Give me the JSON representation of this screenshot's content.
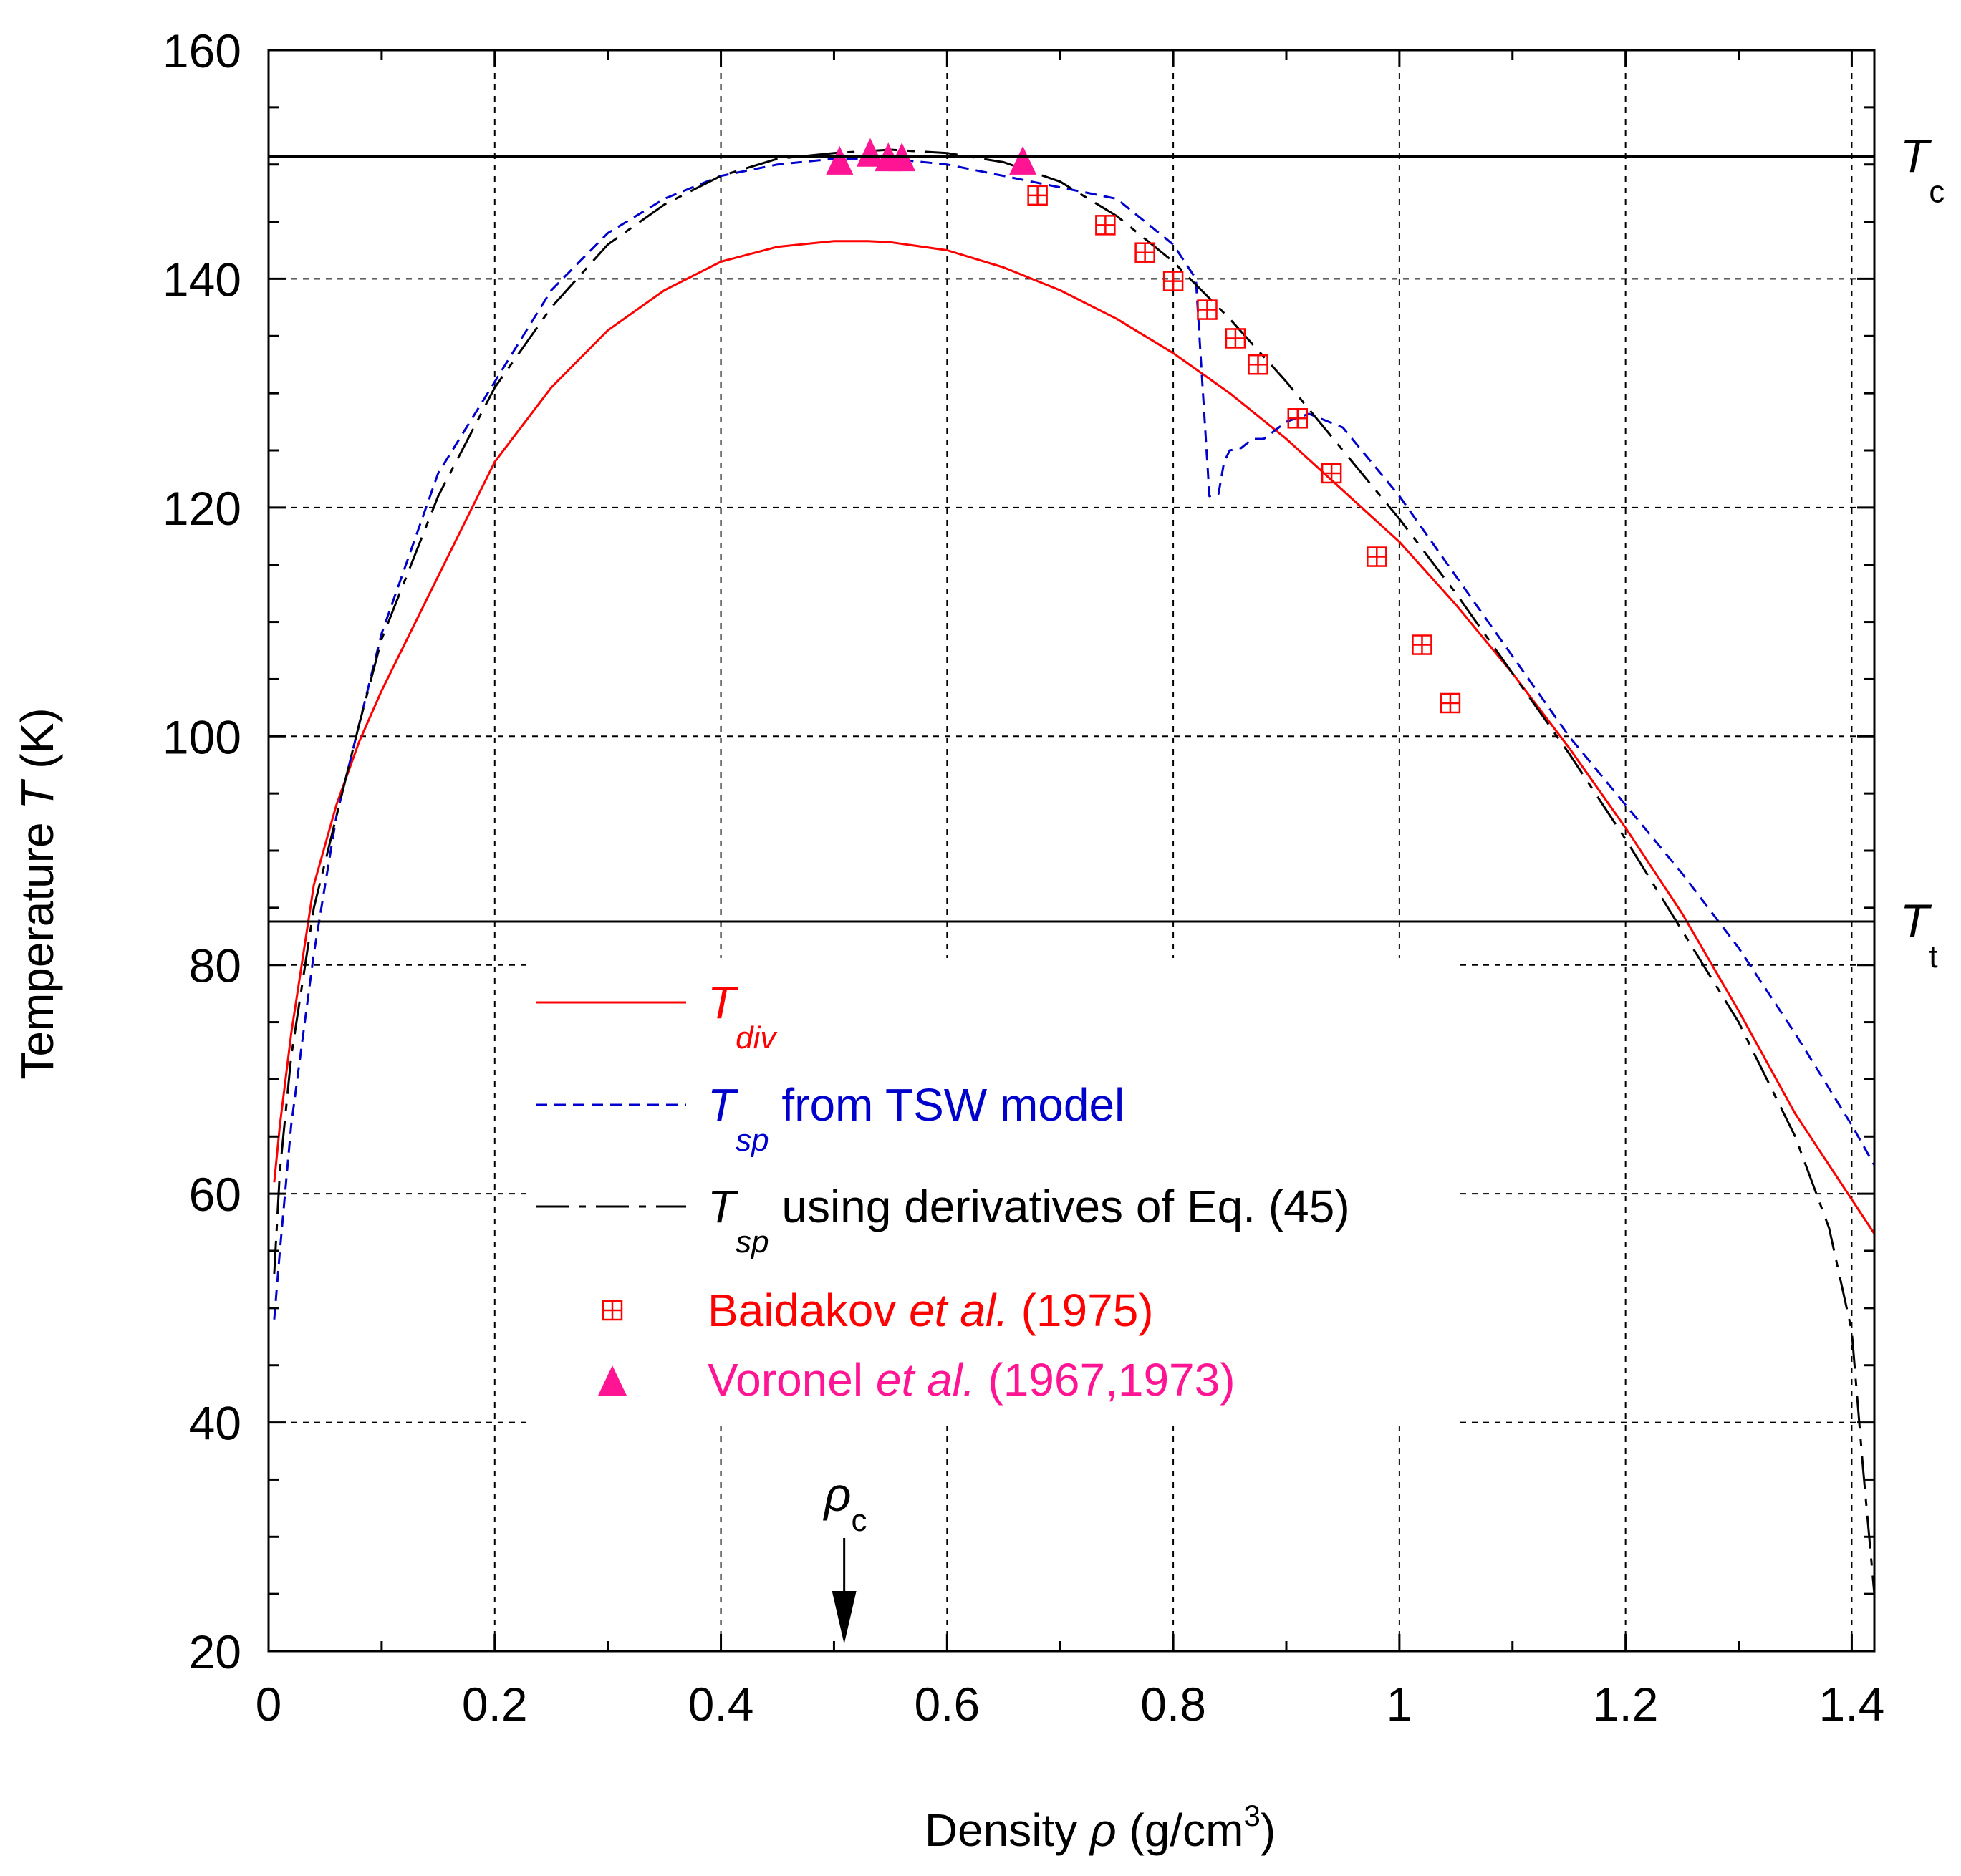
{
  "chart_data": {
    "type": "line",
    "xlabel_pre": "Density ",
    "xlabel_sym": "ρ",
    "xlabel_post": " (g/cm",
    "xlabel_sup": "3",
    "xlabel_end": ")",
    "ylabel_pre": "Temperature ",
    "ylabel_sym": "T",
    "ylabel_post": " (K)",
    "xlim": [
      0,
      1.42
    ],
    "ylim": [
      20,
      160
    ],
    "xticks": [
      "0",
      "0.2",
      "0.4",
      "0.6",
      "0.8",
      "1",
      "1.2",
      "1.4"
    ],
    "xtick_values": [
      0,
      0.2,
      0.4,
      0.6,
      0.8,
      1.0,
      1.2,
      1.4
    ],
    "yticks": [
      "20",
      "40",
      "60",
      "80",
      "100",
      "120",
      "140",
      "160"
    ],
    "ytick_values": [
      20,
      40,
      60,
      80,
      100,
      120,
      140,
      160
    ],
    "hlines": [
      {
        "value": 150.7,
        "sym": "T",
        "sub": "c"
      },
      {
        "value": 83.8,
        "sym": "T",
        "sub": "t"
      }
    ],
    "rho_c": {
      "value": 0.509,
      "sym": "ρ",
      "sub": "c"
    },
    "series": [
      {
        "name": "T_div",
        "color": "#ff0000",
        "style": "solid",
        "x": [
          0.005,
          0.01,
          0.02,
          0.04,
          0.06,
          0.08,
          0.1,
          0.15,
          0.2,
          0.25,
          0.3,
          0.35,
          0.4,
          0.45,
          0.5,
          0.53,
          0.55,
          0.6,
          0.65,
          0.7,
          0.75,
          0.8,
          0.85,
          0.9,
          0.95,
          1.0,
          1.05,
          1.1,
          1.15,
          1.2,
          1.25,
          1.3,
          1.35,
          1.4,
          1.42
        ],
        "y": [
          61,
          66,
          74,
          87,
          94,
          99.5,
          104,
          114,
          124,
          130.5,
          135.5,
          139,
          141.5,
          142.8,
          143.3,
          143.3,
          143.2,
          142.5,
          141,
          139,
          136.5,
          133.5,
          130,
          126,
          121.5,
          117,
          111.5,
          105.5,
          99,
          92,
          84.5,
          76,
          67,
          59.5,
          56.5
        ]
      },
      {
        "name": "T_sp TSW",
        "color": "#0000cc",
        "style": "dashed",
        "x": [
          0.005,
          0.01,
          0.02,
          0.04,
          0.06,
          0.08,
          0.1,
          0.15,
          0.2,
          0.25,
          0.3,
          0.35,
          0.4,
          0.45,
          0.5,
          0.55,
          0.6,
          0.65,
          0.7,
          0.75,
          0.8,
          0.82,
          0.825,
          0.832,
          0.84,
          0.845,
          0.85,
          0.86,
          0.87,
          0.88,
          0.9,
          0.92,
          0.95,
          1.0,
          1.05,
          1.1,
          1.15,
          1.2,
          1.25,
          1.3,
          1.35,
          1.4,
          1.42
        ],
        "y": [
          49,
          55,
          66,
          81,
          93,
          101,
          109,
          123,
          131,
          139,
          144,
          147,
          149,
          150,
          150.5,
          150.5,
          150,
          149,
          148,
          147,
          143,
          140,
          132,
          121,
          121.2,
          124,
          125,
          125.2,
          126,
          126,
          127.5,
          128.2,
          127,
          121,
          114,
          107,
          100,
          94,
          88,
          81.5,
          74,
          66,
          62.5
        ]
      },
      {
        "name": "T_sp Eq45",
        "color": "#000000",
        "style": "longdash",
        "x": [
          0.005,
          0.01,
          0.02,
          0.04,
          0.06,
          0.08,
          0.1,
          0.15,
          0.2,
          0.25,
          0.3,
          0.35,
          0.4,
          0.45,
          0.5,
          0.55,
          0.6,
          0.65,
          0.7,
          0.75,
          0.8,
          0.85,
          0.9,
          0.95,
          1.0,
          1.05,
          1.1,
          1.15,
          1.2,
          1.25,
          1.3,
          1.35,
          1.38,
          1.4,
          1.41,
          1.42
        ],
        "y": [
          53,
          62,
          72,
          85,
          93,
          101,
          108.5,
          121,
          130.5,
          137.5,
          143,
          146.5,
          149,
          150.5,
          151,
          151.3,
          151,
          150.2,
          148.5,
          145.5,
          141.5,
          136.5,
          131,
          125,
          119,
          112.5,
          105.5,
          98.5,
          91,
          83,
          75,
          65,
          57,
          48,
          36,
          25
        ]
      }
    ],
    "scatter": [
      {
        "name": "Baidakov",
        "color": "#ff0000",
        "marker": "boxplus",
        "x": [
          0.68,
          0.74,
          0.775,
          0.8,
          0.83,
          0.855,
          0.875,
          0.91,
          0.94,
          0.98,
          1.02,
          1.045
        ],
        "y": [
          147.3,
          144.7,
          142.3,
          139.8,
          137.3,
          134.8,
          132.5,
          127.8,
          123,
          115.7,
          108,
          102.9
        ]
      },
      {
        "name": "Voronel",
        "color": "#ff1493",
        "marker": "triangle",
        "x": [
          0.505,
          0.532,
          0.548,
          0.56,
          0.667
        ],
        "y": [
          150.3,
          151,
          150.6,
          150.6,
          150.3
        ]
      }
    ],
    "legend": [
      {
        "sym": "T",
        "sub": "div",
        "text": "",
        "color": "#ff0000",
        "text_color": "#ff0000"
      },
      {
        "sym": "T",
        "sub": "sp",
        "text": " from TSW model",
        "color": "#0000cc",
        "text_color": "#0000cc"
      },
      {
        "sym": "T",
        "sub": "sp",
        "text": " using derivatives of Eq. (45)",
        "color": "#000000",
        "text_color": "#000000"
      },
      {
        "pre": "Baidakov ",
        "ital": "et al.",
        "post": " (1975)",
        "color": "#ff0000",
        "text_color": "#ff0000"
      },
      {
        "pre": "Voronel ",
        "ital": "et al.",
        "post": " (1967,1973)",
        "color": "#ff1493",
        "text_color": "#ff1493"
      }
    ]
  }
}
